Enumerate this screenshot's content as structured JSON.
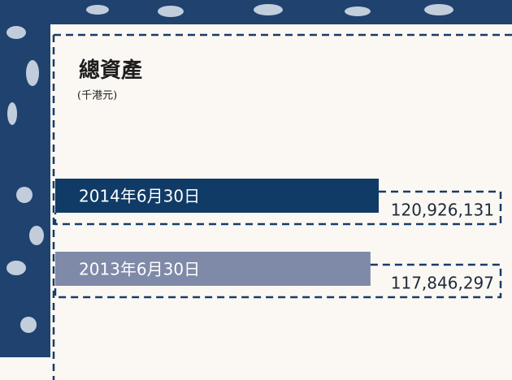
{
  "chart_data": {
    "type": "bar",
    "orientation": "horizontal",
    "title": "總資產",
    "subtitle": "(千港元)",
    "categories": [
      "2014年6月30日",
      "2013年6月30日"
    ],
    "values": [
      120926131,
      117846297
    ],
    "value_labels": [
      "120,926,131",
      "117,846,297"
    ],
    "colors": [
      "#0f3b66",
      "#7f8aa9"
    ]
  }
}
